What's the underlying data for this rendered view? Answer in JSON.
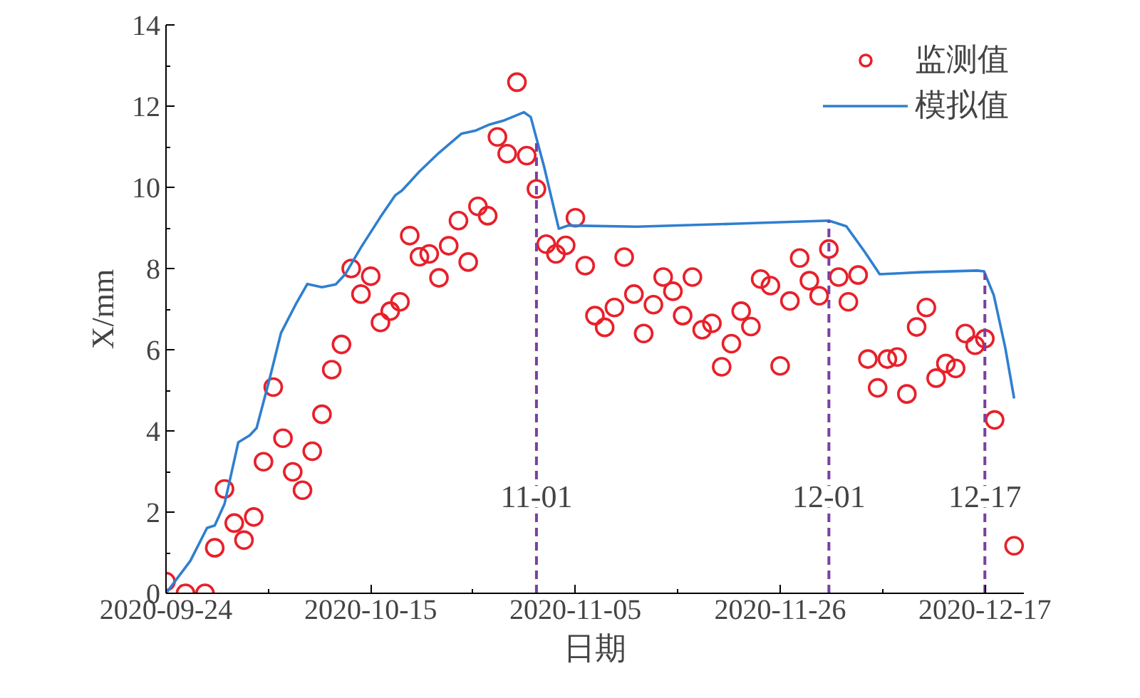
{
  "chart_data": {
    "type": "scatter",
    "xlabel": "日期",
    "ylabel": "X/mm",
    "xlim": [
      "2020-09-24",
      "2020-12-21"
    ],
    "xticks": [
      {
        "value": "2020-09-24",
        "label": "2020-09-24"
      },
      {
        "value": "2020-10-15",
        "label": "2020-10-15"
      },
      {
        "value": "2020-11-05",
        "label": "2020-11-05"
      },
      {
        "value": "2020-11-26",
        "label": "2020-11-26"
      },
      {
        "value": "2020-12-17",
        "label": "2020-12-17"
      }
    ],
    "ylim": [
      0,
      14
    ],
    "yticks": [
      0,
      2,
      4,
      6,
      8,
      10,
      12,
      14
    ],
    "grid": false,
    "legend": "top right",
    "series": [
      {
        "name": "监测值",
        "marker": "circle",
        "color": "#e8202a",
        "x": [
          "2020-09-24",
          "2020-09-26",
          "2020-09-28",
          "2020-09-29",
          "2020-09-30",
          "2020-10-01",
          "2020-10-02",
          "2020-10-03",
          "2020-10-04",
          "2020-10-05",
          "2020-10-06",
          "2020-10-07",
          "2020-10-08",
          "2020-10-09",
          "2020-10-10",
          "2020-10-11",
          "2020-10-12",
          "2020-10-13",
          "2020-10-14",
          "2020-10-15",
          "2020-10-16",
          "2020-10-17",
          "2020-10-18",
          "2020-10-19",
          "2020-10-20",
          "2020-10-21",
          "2020-10-22",
          "2020-10-23",
          "2020-10-24",
          "2020-10-25",
          "2020-10-26",
          "2020-10-27",
          "2020-10-28",
          "2020-10-29",
          "2020-10-30",
          "2020-10-31",
          "2020-11-01",
          "2020-11-02",
          "2020-11-03",
          "2020-11-04",
          "2020-11-05",
          "2020-11-06",
          "2020-11-07",
          "2020-11-08",
          "2020-11-09",
          "2020-11-10",
          "2020-11-11",
          "2020-11-12",
          "2020-11-13",
          "2020-11-14",
          "2020-11-15",
          "2020-11-16",
          "2020-11-17",
          "2020-11-18",
          "2020-11-19",
          "2020-11-20",
          "2020-11-21",
          "2020-11-22",
          "2020-11-23",
          "2020-11-24",
          "2020-11-25",
          "2020-11-26",
          "2020-11-27",
          "2020-11-28",
          "2020-11-29",
          "2020-11-30",
          "2020-12-01",
          "2020-12-02",
          "2020-12-03",
          "2020-12-04",
          "2020-12-05",
          "2020-12-06",
          "2020-12-07",
          "2020-12-08",
          "2020-12-09",
          "2020-12-10",
          "2020-12-11",
          "2020-12-12",
          "2020-12-13",
          "2020-12-14",
          "2020-12-15",
          "2020-12-16",
          "2020-12-17",
          "2020-12-18",
          "2020-12-20"
        ],
        "values": [
          0.29,
          0.0,
          0.0,
          1.12,
          2.57,
          1.73,
          1.31,
          1.88,
          3.24,
          5.08,
          3.82,
          2.99,
          2.54,
          3.5,
          4.41,
          5.51,
          6.13,
          8.0,
          7.37,
          7.81,
          6.67,
          6.95,
          7.18,
          8.81,
          8.29,
          8.36,
          7.77,
          8.56,
          9.18,
          8.16,
          9.53,
          9.3,
          11.24,
          10.83,
          12.59,
          10.78,
          9.96,
          8.6,
          8.36,
          8.57,
          9.25,
          8.07,
          6.84,
          6.55,
          7.04,
          8.28,
          7.37,
          6.4,
          7.11,
          7.79,
          7.44,
          6.84,
          7.79,
          6.49,
          6.65,
          5.58,
          6.15,
          6.95,
          6.57,
          7.74,
          7.58,
          5.6,
          7.2,
          8.26,
          7.7,
          7.33,
          8.48,
          7.79,
          7.18,
          7.84,
          5.77,
          5.06,
          5.77,
          5.82,
          4.91,
          6.56,
          7.04,
          5.3,
          5.66,
          5.54,
          6.4,
          6.11,
          6.27,
          4.27,
          1.17
        ]
      },
      {
        "name": "模拟值",
        "type": "line",
        "line_style": "solid",
        "color": "#2f7fd0",
        "x": [
          "2020-09-24",
          "2020-09-26T12:00",
          "2020-09-28T05:00",
          "2020-09-29",
          "2020-09-30",
          "2020-10-01T10:00",
          "2020-10-02T14:00",
          "2020-10-03T07:00",
          "2020-10-04T14:00",
          "2020-10-05T19:00",
          "2020-10-07T07:00",
          "2020-10-08T12:00",
          "2020-10-10",
          "2020-10-11T10:00",
          "2020-10-12T10:00",
          "2020-10-14",
          "2020-10-16",
          "2020-10-17T12:00",
          "2020-10-18T05:00",
          "2020-10-20",
          "2020-10-22",
          "2020-10-24T07:00",
          "2020-10-25T19:00",
          "2020-10-27T05:00",
          "2020-10-28T17:00",
          "2020-10-30T17:00",
          "2020-10-31T10:00",
          "2020-11-01T19:00",
          "2020-11-03T07:00",
          "2020-11-04T07:00",
          "2020-11-11T07:00",
          "2020-11-21",
          "2020-12-01",
          "2020-12-02T19:00",
          "2020-12-04T17:00",
          "2020-12-06T05:00",
          "2020-12-10T14:00",
          "2020-12-16T05:00",
          "2020-12-16T22:00",
          "2020-12-17T22:00",
          "2020-12-19T02:00",
          "2020-12-20"
        ],
        "values": [
          0.0,
          0.8,
          1.61,
          1.67,
          2.2,
          3.72,
          3.89,
          4.07,
          5.24,
          6.41,
          7.11,
          7.62,
          7.54,
          7.61,
          7.87,
          8.52,
          9.27,
          9.8,
          9.92,
          10.39,
          10.85,
          11.32,
          11.4,
          11.55,
          11.65,
          11.85,
          11.73,
          10.5,
          8.98,
          9.06,
          9.03,
          9.1,
          9.18,
          9.04,
          8.4,
          7.86,
          7.91,
          7.95,
          7.93,
          7.34,
          6.06,
          4.8
        ]
      }
    ],
    "ref_lines": [
      {
        "axis": "x",
        "value": "2020-11-01",
        "label": "11-01",
        "color": "#7b3fa0",
        "line_style": "dashed"
      },
      {
        "axis": "x",
        "value": "2020-12-01",
        "label": "12-01",
        "color": "#7b3fa0",
        "line_style": "dashed"
      },
      {
        "axis": "x",
        "value": "2020-12-17",
        "label": "12-17",
        "color": "#7b3fa0",
        "line_style": "dashed"
      }
    ]
  }
}
